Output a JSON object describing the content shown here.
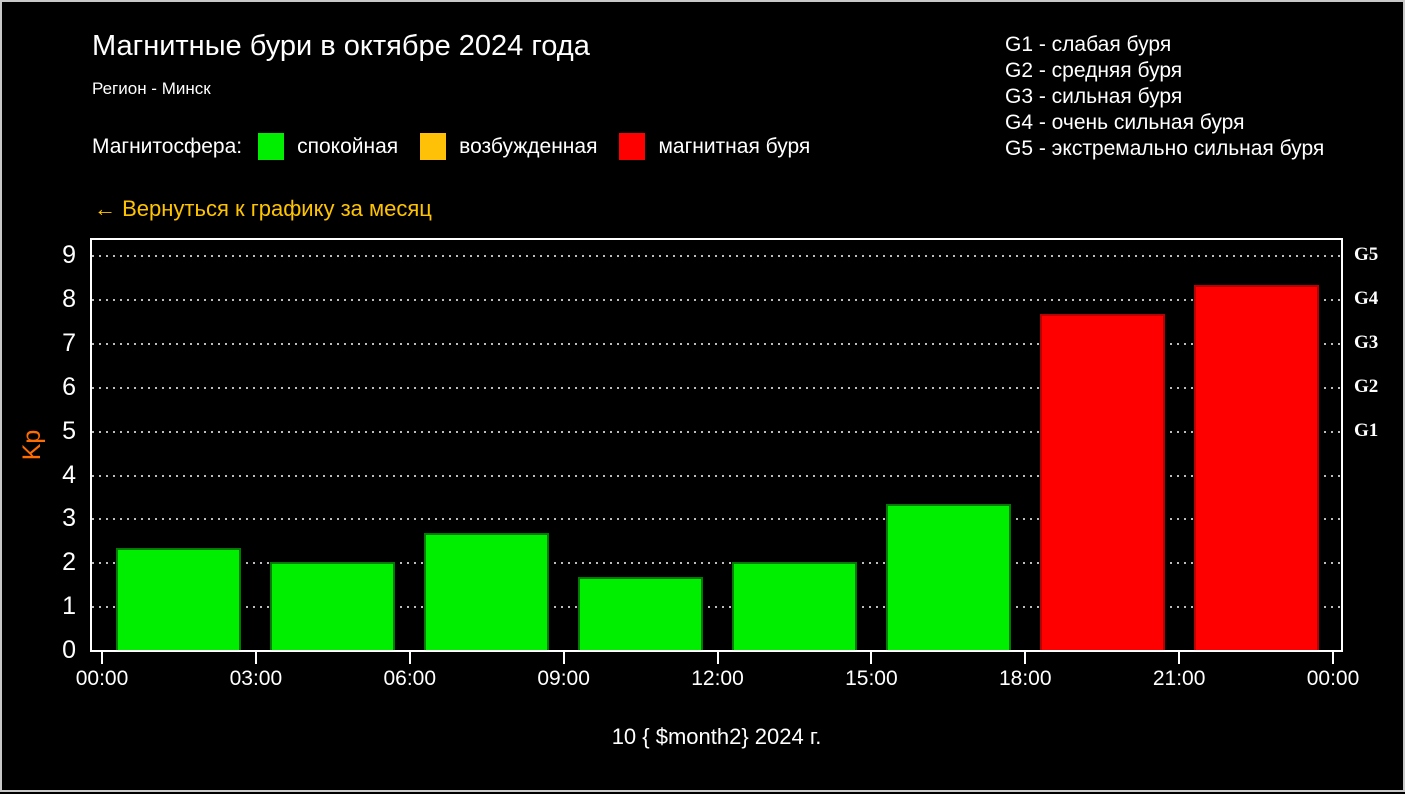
{
  "header": {
    "title": "Магнитные бури в октябре 2024 года",
    "subtitle": "Регион - Минск"
  },
  "g_scale": {
    "separator": " - ",
    "items": [
      {
        "code": "G1",
        "desc": "слабая буря"
      },
      {
        "code": "G2",
        "desc": "средняя буря"
      },
      {
        "code": "G3",
        "desc": "сильная буря"
      },
      {
        "code": "G4",
        "desc": "очень сильная буря"
      },
      {
        "code": "G5",
        "desc": "экстремально сильная буря"
      }
    ]
  },
  "magnetosphere_legend": {
    "label": "Магнитосфера:",
    "items": [
      {
        "label": "спокойная",
        "color": "#00ee00"
      },
      {
        "label": "возбужденная",
        "color": "#ffc107"
      },
      {
        "label": "магнитная буря",
        "color": "#ff0000"
      }
    ]
  },
  "back_link": {
    "text": "← Вернуться к графику за месяц",
    "color": "#ffc400"
  },
  "chart_data": {
    "type": "bar",
    "title": "Магнитные бури в октябре 2024 года",
    "xlabel": "10 { $month2} 2024 г.",
    "ylabel": "Kp",
    "ylabel_color": "#ff6d00",
    "ylim": [
      0,
      9.35
    ],
    "yticks": [
      0,
      1,
      2,
      3,
      4,
      5,
      6,
      7,
      8,
      9
    ],
    "grid": "horizontal-dotted",
    "legend_position": "top",
    "x_tick_labels": [
      "00:00",
      "03:00",
      "06:00",
      "09:00",
      "12:00",
      "15:00",
      "18:00",
      "21:00",
      "00:00"
    ],
    "right_axis_labels": [
      {
        "label": "G1",
        "kp": 5
      },
      {
        "label": "G2",
        "kp": 6
      },
      {
        "label": "G3",
        "kp": 7
      },
      {
        "label": "G4",
        "kp": 8
      },
      {
        "label": "G5",
        "kp": 9
      }
    ],
    "status_colors": {
      "спокойная": {
        "fill": "#00ee00",
        "edge": "#007c00"
      },
      "возбужденная": {
        "fill": "#ffc107",
        "edge": "#b08400"
      },
      "магнитная буря": {
        "fill": "#ff0000",
        "edge": "#b80000"
      }
    },
    "bars": [
      {
        "time_start": "00:00",
        "time_end": "03:00",
        "kp": 2.33,
        "status": "спокойная"
      },
      {
        "time_start": "03:00",
        "time_end": "06:00",
        "kp": 2.0,
        "status": "спокойная"
      },
      {
        "time_start": "06:00",
        "time_end": "09:00",
        "kp": 2.67,
        "status": "спокойная"
      },
      {
        "time_start": "09:00",
        "time_end": "12:00",
        "kp": 1.67,
        "status": "спокойная"
      },
      {
        "time_start": "12:00",
        "time_end": "15:00",
        "kp": 2.0,
        "status": "спокойная"
      },
      {
        "time_start": "15:00",
        "time_end": "18:00",
        "kp": 3.33,
        "status": "спокойная"
      },
      {
        "time_start": "18:00",
        "time_end": "21:00",
        "kp": 7.67,
        "status": "магнитная буря"
      },
      {
        "time_start": "21:00",
        "time_end": "00:00",
        "kp": 8.33,
        "status": "магнитная буря"
      }
    ]
  }
}
